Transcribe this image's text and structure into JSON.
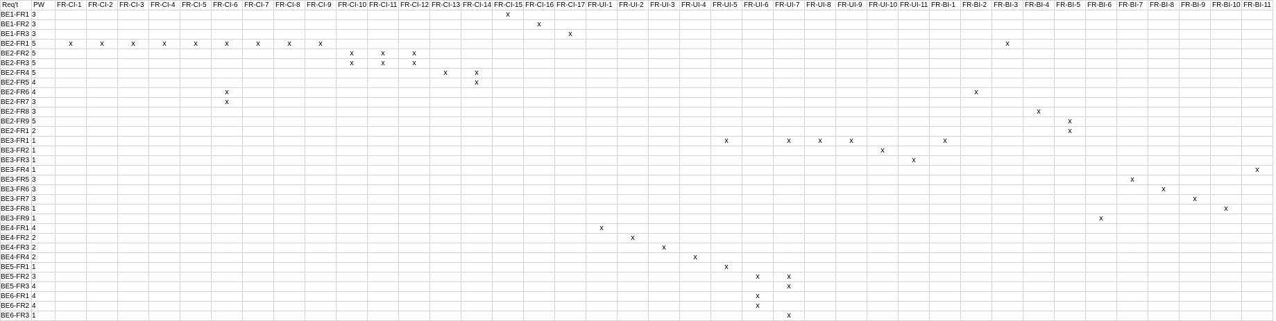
{
  "header": {
    "req_label": "Req't",
    "pw_label": "PW",
    "columns": [
      "FR-CI-1",
      "FR-CI-2",
      "FR-CI-3",
      "FR-CI-4",
      "FR-CI-5",
      "FR-CI-6",
      "FR-CI-7",
      "FR-CI-8",
      "FR-CI-9",
      "FR-CI-10",
      "FR-CI-11",
      "FR-CI-12",
      "FR-CI-13",
      "FR-CI-14",
      "FR-CI-15",
      "FR-CI-16",
      "FR-CI-17",
      "FR-UI-1",
      "FR-UI-2",
      "FR-UI-3",
      "FR-UI-4",
      "FR-UI-5",
      "FR-UI-6",
      "FR-UI-7",
      "FR-UI-8",
      "FR-UI-9",
      "FR-UI-10",
      "FR-UI-11",
      "FR-BI-1",
      "FR-BI-2",
      "FR-BI-3",
      "FR-BI-4",
      "FR-BI-5",
      "FR-BI-6",
      "FR-BI-7",
      "FR-BI-8",
      "FR-BI-9",
      "FR-BI-10",
      "FR-BI-11"
    ]
  },
  "mark_symbol": "x",
  "rows": [
    {
      "req": "BE1-FR1",
      "pw": "3",
      "marks": [
        "FR-CI-15"
      ]
    },
    {
      "req": "BE1-FR2",
      "pw": "3",
      "marks": [
        "FR-CI-16"
      ]
    },
    {
      "req": "BE1-FR3",
      "pw": "3",
      "marks": [
        "FR-CI-17"
      ]
    },
    {
      "req": "BE2-FR1",
      "pw": "5",
      "marks": [
        "FR-CI-1",
        "FR-CI-2",
        "FR-CI-3",
        "FR-CI-4",
        "FR-CI-5",
        "FR-CI-6",
        "FR-CI-7",
        "FR-CI-8",
        "FR-CI-9",
        "FR-BI-3"
      ]
    },
    {
      "req": "BE2-FR2",
      "pw": "5",
      "marks": [
        "FR-CI-10",
        "FR-CI-11",
        "FR-CI-12"
      ]
    },
    {
      "req": "BE2-FR3",
      "pw": "5",
      "marks": [
        "FR-CI-10",
        "FR-CI-11",
        "FR-CI-12"
      ]
    },
    {
      "req": "BE2-FR4",
      "pw": "5",
      "marks": [
        "FR-CI-13",
        "FR-CI-14"
      ]
    },
    {
      "req": "BE2-FR5",
      "pw": "4",
      "marks": [
        "FR-CI-14"
      ]
    },
    {
      "req": "BE2-FR6",
      "pw": "4",
      "marks": [
        "FR-CI-6",
        "FR-BI-2"
      ]
    },
    {
      "req": "BE2-FR7",
      "pw": "3",
      "marks": [
        "FR-CI-6"
      ]
    },
    {
      "req": "BE2-FR8",
      "pw": "3",
      "marks": [
        "FR-BI-4"
      ]
    },
    {
      "req": "BE2-FR9",
      "pw": "5",
      "marks": [
        "FR-BI-5"
      ]
    },
    {
      "req": "BE2-FR1",
      "pw": "2",
      "marks": [
        "FR-BI-5"
      ]
    },
    {
      "req": "BE3-FR1",
      "pw": "1",
      "marks": [
        "FR-UI-5",
        "FR-UI-7",
        "FR-UI-8",
        "FR-UI-9",
        "FR-BI-1"
      ]
    },
    {
      "req": "BE3-FR2",
      "pw": "1",
      "marks": [
        "FR-UI-10"
      ]
    },
    {
      "req": "BE3-FR3",
      "pw": "1",
      "marks": [
        "FR-UI-11"
      ]
    },
    {
      "req": "BE3-FR4",
      "pw": "1",
      "marks": [
        "FR-BI-11"
      ]
    },
    {
      "req": "BE3-FR5",
      "pw": "3",
      "marks": [
        "FR-BI-7"
      ]
    },
    {
      "req": "BE3-FR6",
      "pw": "3",
      "marks": [
        "FR-BI-8"
      ]
    },
    {
      "req": "BE3-FR7",
      "pw": "3",
      "marks": [
        "FR-BI-9"
      ]
    },
    {
      "req": "BE3-FR8",
      "pw": "1",
      "marks": [
        "FR-BI-10"
      ]
    },
    {
      "req": "BE3-FR9",
      "pw": "1",
      "marks": [
        "FR-BI-6"
      ]
    },
    {
      "req": "BE4-FR1",
      "pw": "4",
      "marks": [
        "FR-UI-1"
      ]
    },
    {
      "req": "BE4-FR2",
      "pw": "2",
      "marks": [
        "FR-UI-2"
      ]
    },
    {
      "req": "BE4-FR3",
      "pw": "2",
      "marks": [
        "FR-UI-3"
      ]
    },
    {
      "req": "BE4-FR4",
      "pw": "2",
      "marks": [
        "FR-UI-4"
      ]
    },
    {
      "req": "BE5-FR1",
      "pw": "1",
      "marks": [
        "FR-UI-5"
      ]
    },
    {
      "req": "BE5-FR2",
      "pw": "3",
      "marks": [
        "FR-UI-6",
        "FR-UI-7"
      ]
    },
    {
      "req": "BE5-FR3",
      "pw": "4",
      "marks": [
        "FR-UI-7"
      ]
    },
    {
      "req": "BE6-FR1",
      "pw": "4",
      "marks": [
        "FR-UI-6"
      ]
    },
    {
      "req": "BE6-FR2",
      "pw": "4",
      "marks": [
        "FR-UI-6"
      ]
    },
    {
      "req": "BE6-FR3",
      "pw": "1",
      "marks": [
        "FR-UI-7"
      ]
    }
  ]
}
